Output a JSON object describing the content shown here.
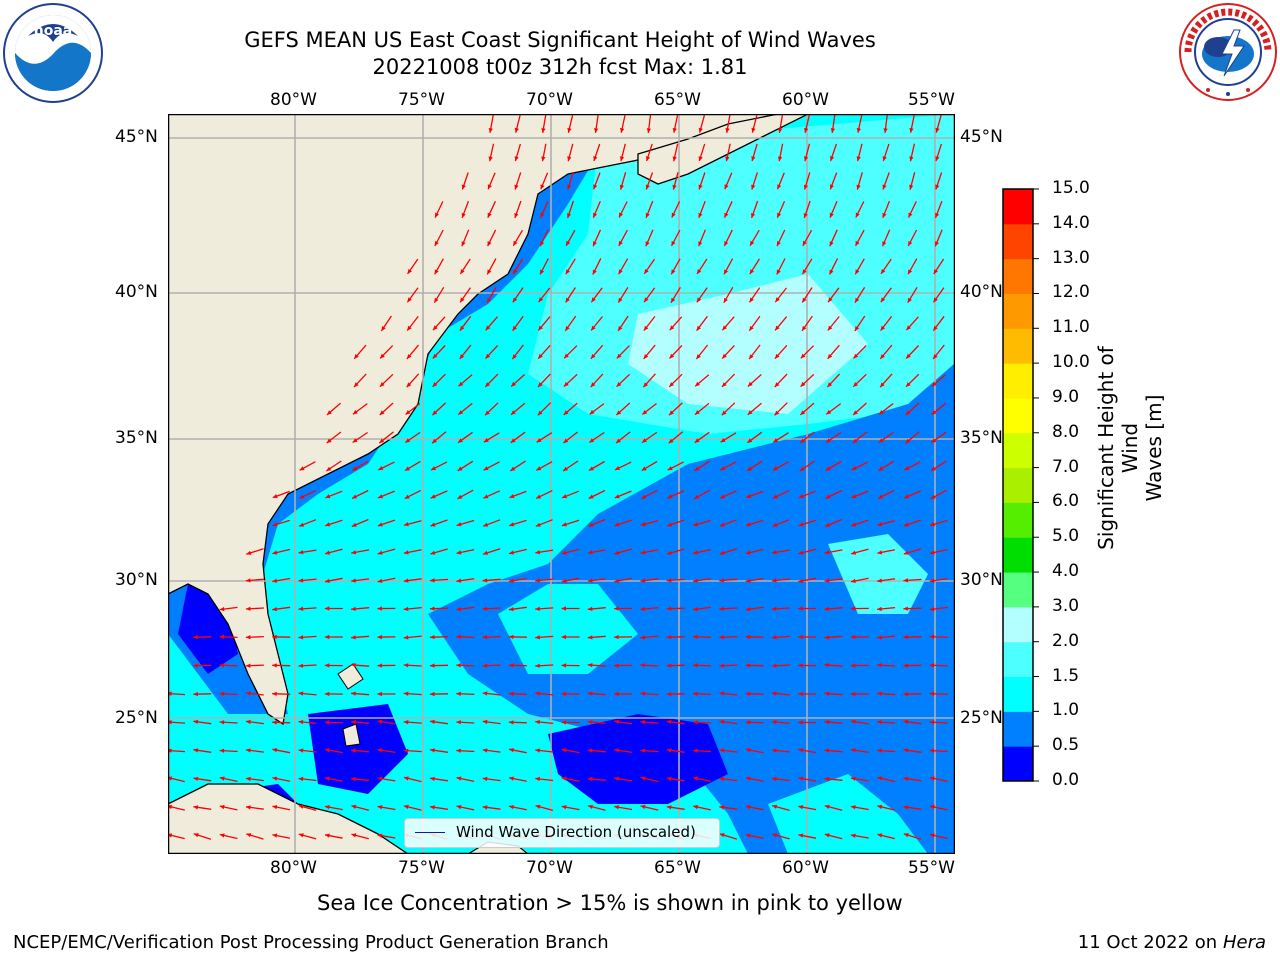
{
  "title": {
    "line1": "GEFS MEAN US East Coast Significant Height of Wind Waves",
    "line2": "20221008 t00z 312h fcst   Max: 1.81"
  },
  "logos": {
    "left": {
      "name": "NOAA",
      "ring_text": "NATIONAL OCEANIC AND ATMOSPHERIC ADMINISTRATION · U.S. DEPARTMENT OF COMMERCE"
    },
    "right": {
      "name": "NATIONAL WEATHER SERVICE"
    }
  },
  "map": {
    "lon_labels": [
      "80°W",
      "75°W",
      "70°W",
      "65°W",
      "60°W",
      "55°W"
    ],
    "lat_labels": [
      "45°N",
      "40°N",
      "35°N",
      "30°N",
      "25°N"
    ],
    "lon_values": [
      -80,
      -75,
      -70,
      -65,
      -60,
      -55
    ],
    "lat_values": [
      45,
      40,
      35,
      30,
      25
    ],
    "extent": {
      "lon": [
        -85,
        -54.5
      ],
      "lat": [
        20.5,
        45.8
      ]
    },
    "land_color": "#efecdc",
    "arrow_color": "#ff0000",
    "grid_color": "#b0b0b0"
  },
  "legend": {
    "label": "Wind Wave Direction (unscaled)"
  },
  "colorbar": {
    "label": "Significant Height of Wind Waves [m]",
    "label_line1": "Significant Height of Wind",
    "label_line2": "Waves [m]",
    "ticks": [
      "0.0",
      "0.5",
      "1.0",
      "1.5",
      "2.0",
      "3.0",
      "4.0",
      "5.0",
      "6.0",
      "7.0",
      "8.0",
      "9.0",
      "10.0",
      "11.0",
      "12.0",
      "13.0",
      "14.0",
      "15.0"
    ],
    "colors": [
      "#0000ff",
      "#0080ff",
      "#00ffff",
      "#4dffff",
      "#b3ffff",
      "#55ff7f",
      "#00dd00",
      "#55ee00",
      "#aaee00",
      "#ccff00",
      "#ffff00",
      "#ffee00",
      "#ffbb00",
      "#ff9900",
      "#ff7700",
      "#ff4400",
      "#ff0000"
    ]
  },
  "footer": {
    "subtitle": "Sea Ice Concentration > 15% is shown in pink to yellow",
    "left": "NCEP/EMC/Verification Post Processing Product Generation Branch",
    "right_prefix": "11 Oct 2022 on ",
    "right_machine": "Hera"
  }
}
